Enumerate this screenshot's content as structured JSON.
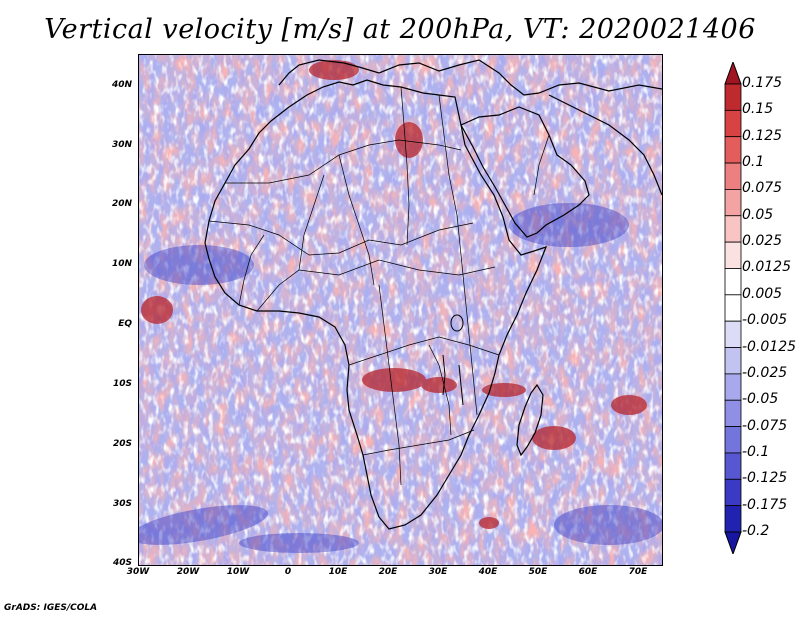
{
  "title": "Vertical velocity [m/s] at 200hPa, VT: 2020021406",
  "lat_labels": [
    "40N",
    "30N",
    "20N",
    "10N",
    "EQ",
    "10S",
    "20S",
    "30S",
    "40S"
  ],
  "lon_labels": [
    "30W",
    "20W",
    "10W",
    "0",
    "10E",
    "20E",
    "30E",
    "40E",
    "50E",
    "60E",
    "70E"
  ],
  "colorbar": {
    "levels": [
      "0.175",
      "0.15",
      "0.125",
      "0.1",
      "0.075",
      "0.05",
      "0.025",
      "0.0125",
      "0.005",
      "-0.005",
      "-0.0125",
      "-0.025",
      "-0.05",
      "-0.075",
      "-0.1",
      "-0.125",
      "-0.175",
      "-0.2"
    ],
    "colors": [
      "#a11523",
      "#be2a2e",
      "#d94242",
      "#e35d5d",
      "#ec7f7f",
      "#f3a3a3",
      "#f8c4c4",
      "#fbe1e1",
      "#ffffff",
      "#ffffff",
      "#dcdcf7",
      "#c3c3f2",
      "#a8a8ec",
      "#8f8fe6",
      "#7474dd",
      "#5757d2",
      "#3a3ac4",
      "#2222b0",
      "#1616a0"
    ]
  },
  "credit": "GrADS: IGES/COLA"
}
